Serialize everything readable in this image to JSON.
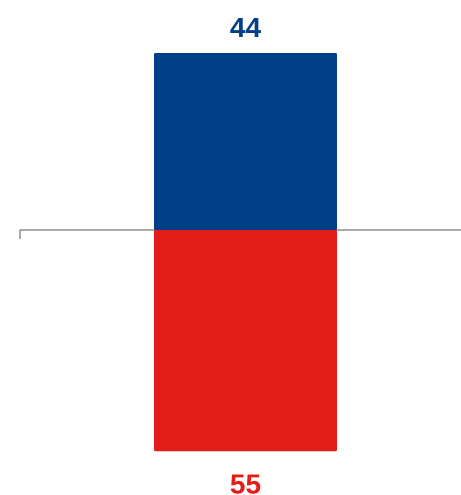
{
  "chart_data": {
    "type": "bar",
    "orientation": "diverging-vertical",
    "series": [
      {
        "values": [
          44
        ],
        "color": "#003f87",
        "direction": "up"
      },
      {
        "values": [
          55
        ],
        "color": "#e31e1a",
        "direction": "down"
      }
    ],
    "data_labels": [
      "44",
      "55"
    ],
    "ylim": [
      -55,
      44
    ],
    "baseline": 0,
    "grid": false,
    "legend": "none"
  }
}
